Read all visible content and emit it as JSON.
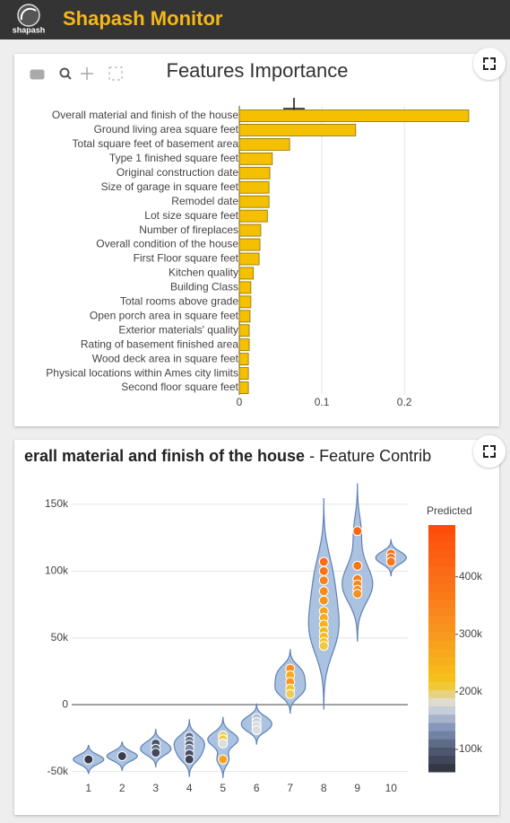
{
  "header": {
    "title": "Shapash Monitor",
    "logo_text": "shapash"
  },
  "chart_data": [
    {
      "type": "barh",
      "title": "Features Importance",
      "categories": [
        "Overall material and finish of the house",
        "Ground living area square feet",
        "Total square feet of basement area",
        "Type 1 finished square feet",
        "Original construction date",
        "Size of garage in square feet",
        "Remodel date",
        "Lot size square feet",
        "Number of fireplaces",
        "Overall condition of the house",
        "First Floor square feet",
        "Kitchen quality",
        "Building Class",
        "Total rooms above grade",
        "Open porch area in square feet",
        "Exterior materials' quality",
        "Rating of basement finished area",
        "Wood deck area in square feet",
        "Physical locations within Ames city limits",
        "Second floor square feet"
      ],
      "values": [
        0.278,
        0.141,
        0.061,
        0.04,
        0.037,
        0.036,
        0.036,
        0.034,
        0.026,
        0.025,
        0.024,
        0.017,
        0.014,
        0.014,
        0.013,
        0.012,
        0.012,
        0.011,
        0.011,
        0.011
      ],
      "color": "#f4c000",
      "xlim": [
        0,
        0.29
      ],
      "xticks": [
        0,
        0.1,
        0.2
      ],
      "grid": true
    },
    {
      "type": "violin",
      "title": "erall material and finish of the house",
      "title_suffix": "- Feature Contrib",
      "x": [
        1,
        2,
        3,
        3,
        3,
        4,
        4,
        4,
        4,
        4,
        4,
        5,
        5,
        5,
        5,
        6,
        6,
        6,
        6,
        7,
        7,
        7,
        7,
        7,
        8,
        8,
        8,
        8,
        8,
        8,
        8,
        8,
        8,
        8,
        8,
        8,
        9,
        9,
        9,
        9,
        9,
        9,
        10,
        10,
        10
      ],
      "values": [
        -41000,
        -38500,
        -29000,
        -33000,
        -36000,
        -24000,
        -27000,
        -30000,
        -33000,
        -37000,
        -41000,
        -23000,
        -26000,
        -29000,
        -41000,
        -10000,
        -13000,
        -16000,
        -19000,
        27000,
        22000,
        17000,
        12000,
        8000,
        107000,
        100000,
        93000,
        85000,
        78000,
        70000,
        65000,
        60000,
        55000,
        51000,
        47000,
        44000,
        130000,
        104000,
        94000,
        90000,
        86000,
        83000,
        113000,
        110000,
        107000
      ],
      "color_values": [
        70000,
        75000,
        95000,
        105000,
        85000,
        110000,
        120000,
        100000,
        130000,
        90000,
        80000,
        200000,
        210000,
        180000,
        280000,
        160000,
        170000,
        175000,
        180000,
        320000,
        260000,
        300000,
        215000,
        205000,
        400000,
        380000,
        350000,
        330000,
        310000,
        280000,
        260000,
        250000,
        240000,
        230000,
        220000,
        210000,
        420000,
        380000,
        360000,
        340000,
        330000,
        320000,
        400000,
        390000,
        380000
      ],
      "xlim": [
        0.5,
        10.5
      ],
      "xticks": [
        1,
        2,
        3,
        4,
        5,
        6,
        7,
        8,
        9,
        10
      ],
      "ylim": [
        -57000,
        158000
      ],
      "yticks": [
        {
          "value": -50000,
          "label": "-50k"
        },
        0,
        {
          "value": 50000,
          "label": "50k"
        },
        {
          "value": 100000,
          "label": "100k"
        },
        {
          "value": 150000,
          "label": "150k"
        }
      ],
      "grid": true,
      "violin_color": "#8fadd6",
      "colorbar": {
        "title": "Predicted",
        "lim": [
          61000,
          490000
        ],
        "ticks": [
          {
            "value": 100000,
            "label": "100k"
          },
          {
            "value": 200000,
            "label": "200k"
          },
          {
            "value": 300000,
            "label": "300k"
          },
          {
            "value": 400000,
            "label": "400k"
          }
        ],
        "colors": [
          "#2d2f38",
          "#4f5a73",
          "#8497bb",
          "#dcdfe6",
          "#f5c518",
          "#f7ae1c",
          "#f89b1e",
          "#f98a1e",
          "#fa781a",
          "#fb6a16",
          "#fd5a10",
          "#ff4a08"
        ]
      }
    }
  ]
}
